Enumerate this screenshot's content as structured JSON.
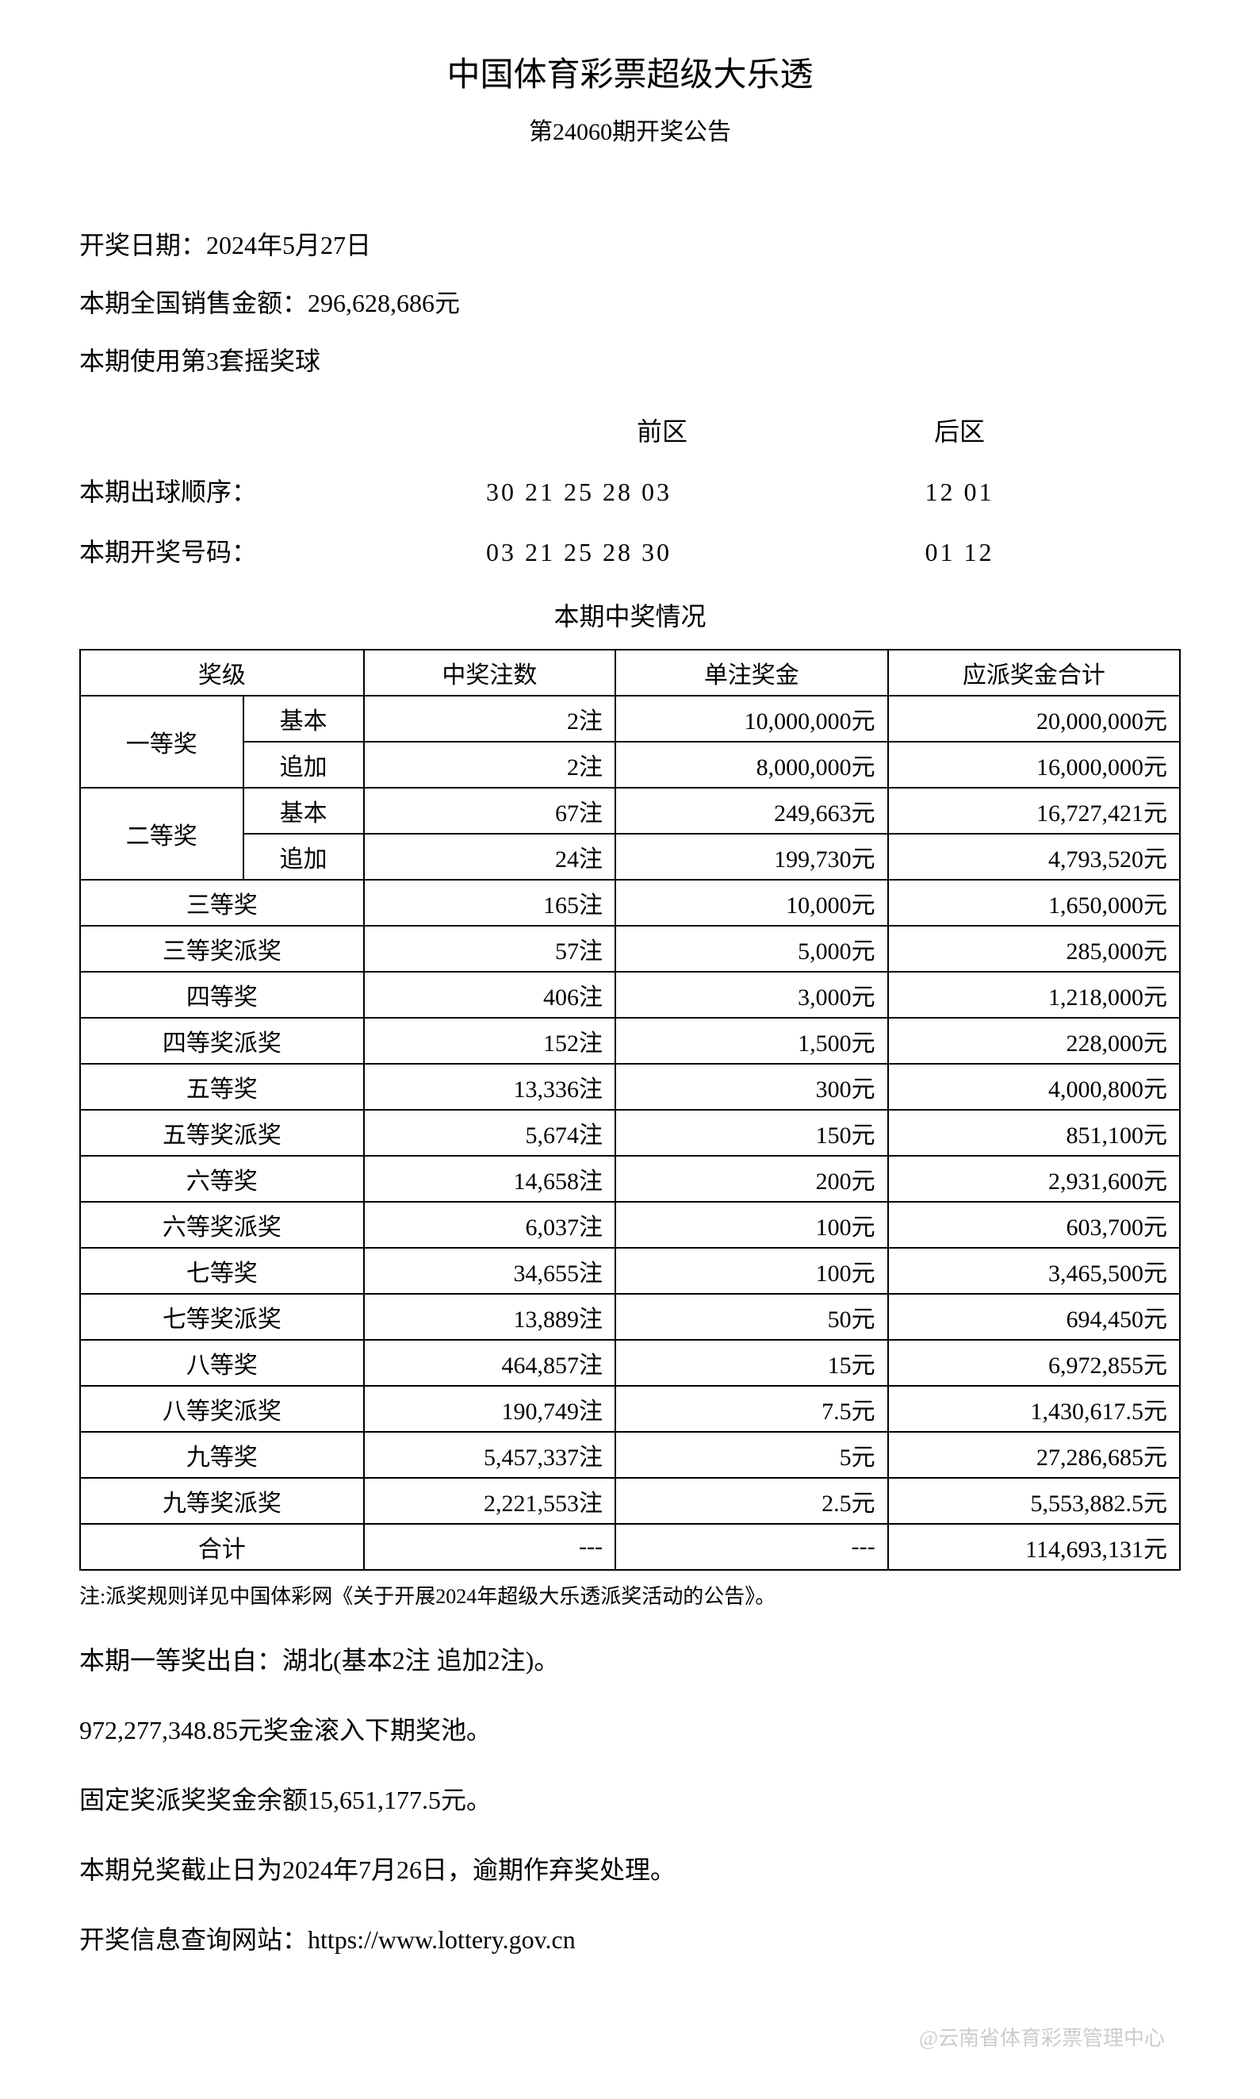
{
  "header": {
    "title_main": "中国体育彩票超级大乐透",
    "title_sub": "第24060期开奖公告"
  },
  "info": {
    "draw_date": "开奖日期：2024年5月27日",
    "sales_amount": "本期全国销售金额：296,628,686元",
    "ball_set": "本期使用第3套摇奖球"
  },
  "zones": {
    "front_label": "前区",
    "back_label": "后区"
  },
  "ball_order": {
    "label": "本期出球顺序：",
    "front": "30 21 25 28 03",
    "back": "12 01"
  },
  "winning_numbers": {
    "label": "本期开奖号码：",
    "front": "03 21 25 28 30",
    "back": "01 12"
  },
  "prize_section_title": "本期中奖情况",
  "table": {
    "headers": {
      "level": "奖级",
      "count": "中奖注数",
      "per_prize": "单注奖金",
      "total": "应派奖金合计"
    },
    "first_prize": {
      "label": "一等奖",
      "basic_label": "基本",
      "basic_count": "2注",
      "basic_per": "10,000,000元",
      "basic_total": "20,000,000元",
      "addon_label": "追加",
      "addon_count": "2注",
      "addon_per": "8,000,000元",
      "addon_total": "16,000,000元"
    },
    "second_prize": {
      "label": "二等奖",
      "basic_label": "基本",
      "basic_count": "67注",
      "basic_per": "249,663元",
      "basic_total": "16,727,421元",
      "addon_label": "追加",
      "addon_count": "24注",
      "addon_per": "199,730元",
      "addon_total": "4,793,520元"
    },
    "rows": [
      {
        "label": "三等奖",
        "count": "165注",
        "per": "10,000元",
        "total": "1,650,000元"
      },
      {
        "label": "三等奖派奖",
        "count": "57注",
        "per": "5,000元",
        "total": "285,000元"
      },
      {
        "label": "四等奖",
        "count": "406注",
        "per": "3,000元",
        "total": "1,218,000元"
      },
      {
        "label": "四等奖派奖",
        "count": "152注",
        "per": "1,500元",
        "total": "228,000元"
      },
      {
        "label": "五等奖",
        "count": "13,336注",
        "per": "300元",
        "total": "4,000,800元"
      },
      {
        "label": "五等奖派奖",
        "count": "5,674注",
        "per": "150元",
        "total": "851,100元"
      },
      {
        "label": "六等奖",
        "count": "14,658注",
        "per": "200元",
        "total": "2,931,600元"
      },
      {
        "label": "六等奖派奖",
        "count": "6,037注",
        "per": "100元",
        "total": "603,700元"
      },
      {
        "label": "七等奖",
        "count": "34,655注",
        "per": "100元",
        "total": "3,465,500元"
      },
      {
        "label": "七等奖派奖",
        "count": "13,889注",
        "per": "50元",
        "total": "694,450元"
      },
      {
        "label": "八等奖",
        "count": "464,857注",
        "per": "15元",
        "total": "6,972,855元"
      },
      {
        "label": "八等奖派奖",
        "count": "190,749注",
        "per": "7.5元",
        "total": "1,430,617.5元"
      },
      {
        "label": "九等奖",
        "count": "5,457,337注",
        "per": "5元",
        "total": "27,286,685元"
      },
      {
        "label": "九等奖派奖",
        "count": "2,221,553注",
        "per": "2.5元",
        "total": "5,553,882.5元"
      }
    ],
    "total_row": {
      "label": "合计",
      "count": "---",
      "per": "---",
      "total": "114,693,131元"
    }
  },
  "footnote": "注:派奖规则详见中国体彩网《关于开展2024年超级大乐透派奖活动的公告》。",
  "bottom": {
    "winner_location": "本期一等奖出自：湖北(基本2注 追加2注)。",
    "rollover": "972,277,348.85元奖金滚入下期奖池。",
    "fixed_balance": "固定奖派奖奖金余额15,651,177.5元。",
    "deadline": "本期兑奖截止日为2024年7月26日，逾期作弃奖处理。",
    "website": "开奖信息查询网站：https://www.lottery.gov.cn"
  },
  "watermark": "@云南省体育彩票管理中心",
  "styling": {
    "background_color": "#ffffff",
    "text_color": "#000000",
    "border_color": "#000000",
    "watermark_color": "#cccccc",
    "title_fontsize": 42,
    "subtitle_fontsize": 30,
    "body_fontsize": 32,
    "table_fontsize": 30,
    "footnote_fontsize": 26
  }
}
